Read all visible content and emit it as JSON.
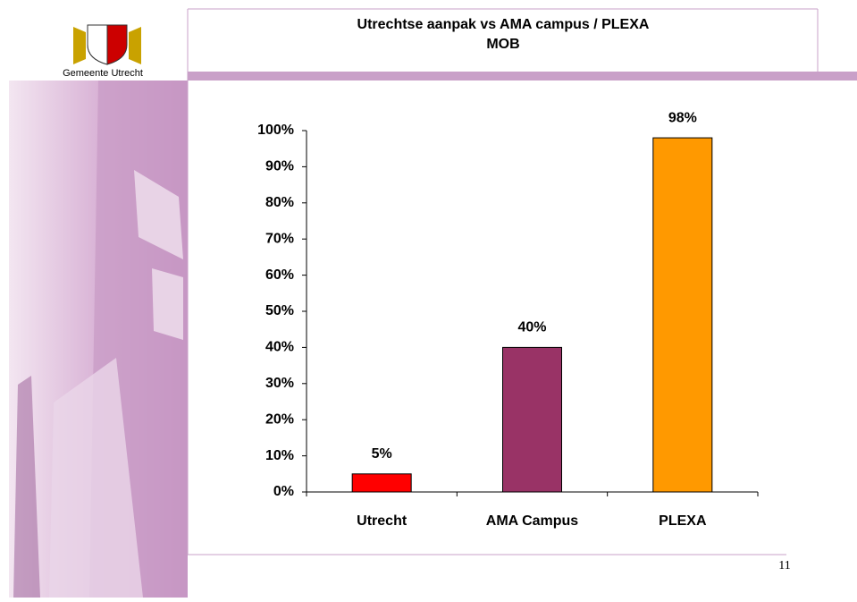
{
  "logo_text": "Gemeente Utrecht",
  "page_number": "11",
  "chart_data": {
    "type": "bar",
    "title": "Utrechtse aanpak vs AMA campus / PLEXA",
    "subtitle": "MOB",
    "categories": [
      "Utrecht",
      "AMA Campus",
      "PLEXA"
    ],
    "values": [
      5,
      40,
      98
    ],
    "value_labels": [
      "5%",
      "40%",
      "98%"
    ],
    "colors": [
      "#ff0000",
      "#993366",
      "#ff9900"
    ],
    "ylim": [
      0,
      100
    ],
    "yticks": [
      {
        "value": 0,
        "label": "0%"
      },
      {
        "value": 10,
        "label": "10%"
      },
      {
        "value": 20,
        "label": "20%"
      },
      {
        "value": 30,
        "label": "30%"
      },
      {
        "value": 40,
        "label": "40%"
      },
      {
        "value": 50,
        "label": "50%"
      },
      {
        "value": 60,
        "label": "60%"
      },
      {
        "value": 70,
        "label": "70%"
      },
      {
        "value": 80,
        "label": "80%"
      },
      {
        "value": 90,
        "label": "90%"
      },
      {
        "value": 100,
        "label": "100%"
      }
    ],
    "grid": false
  }
}
